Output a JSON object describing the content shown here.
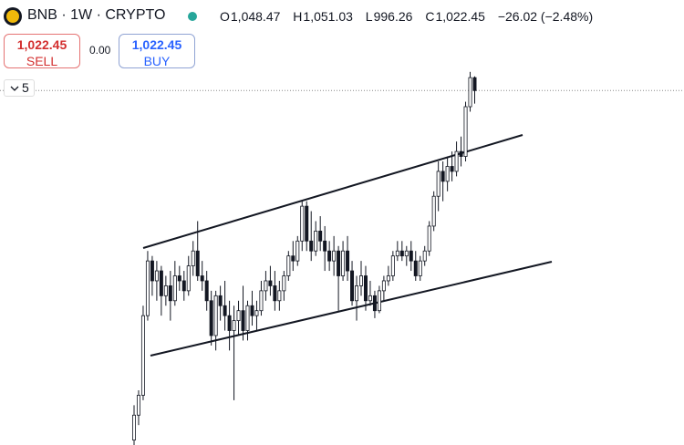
{
  "header": {
    "symbol": "BNB · 1W · CRYPTO",
    "o_label": "O",
    "open": "1,048.47",
    "h_label": "H",
    "high": "1,051.03",
    "l_label": "L",
    "low": "996.26",
    "c_label": "C",
    "close": "1,022.45",
    "change": "−26.02 (−2.48%)"
  },
  "trade": {
    "sell_price": "1,022.45",
    "sell": "SELL",
    "spread": "0.00",
    "buy_price": "1,022.45",
    "buy": "BUY",
    "interval_count": "5"
  },
  "chart_data": {
    "type": "candlestick",
    "ylim": [
      310,
      1100
    ],
    "color": "#131722",
    "candles": [
      [
        320,
        390,
        310,
        370
      ],
      [
        370,
        420,
        350,
        410
      ],
      [
        410,
        590,
        400,
        570
      ],
      [
        570,
        700,
        560,
        680
      ],
      [
        680,
        690,
        610,
        640
      ],
      [
        640,
        680,
        600,
        660
      ],
      [
        660,
        670,
        570,
        610
      ],
      [
        610,
        650,
        590,
        630
      ],
      [
        630,
        660,
        560,
        600
      ],
      [
        600,
        680,
        590,
        650
      ],
      [
        650,
        670,
        620,
        640
      ],
      [
        640,
        660,
        600,
        620
      ],
      [
        620,
        690,
        610,
        670
      ],
      [
        670,
        720,
        650,
        700
      ],
      [
        700,
        760,
        640,
        650
      ],
      [
        650,
        680,
        620,
        640
      ],
      [
        640,
        660,
        580,
        600
      ],
      [
        600,
        620,
        510,
        530
      ],
      [
        530,
        620,
        500,
        610
      ],
      [
        610,
        630,
        560,
        590
      ],
      [
        590,
        640,
        540,
        570
      ],
      [
        570,
        600,
        500,
        540
      ],
      [
        540,
        590,
        400,
        560
      ],
      [
        560,
        600,
        530,
        580
      ],
      [
        580,
        630,
        520,
        540
      ],
      [
        540,
        600,
        520,
        590
      ],
      [
        590,
        620,
        550,
        570
      ],
      [
        570,
        600,
        540,
        580
      ],
      [
        580,
        640,
        570,
        620
      ],
      [
        620,
        660,
        600,
        640
      ],
      [
        640,
        670,
        610,
        630
      ],
      [
        630,
        660,
        580,
        600
      ],
      [
        600,
        640,
        580,
        620
      ],
      [
        620,
        660,
        600,
        650
      ],
      [
        650,
        700,
        640,
        690
      ],
      [
        690,
        720,
        660,
        680
      ],
      [
        680,
        730,
        670,
        720
      ],
      [
        720,
        800,
        700,
        790
      ],
      [
        790,
        800,
        700,
        720
      ],
      [
        720,
        780,
        680,
        700
      ],
      [
        700,
        760,
        690,
        740
      ],
      [
        740,
        770,
        700,
        720
      ],
      [
        720,
        750,
        660,
        700
      ],
      [
        700,
        720,
        660,
        680
      ],
      [
        680,
        730,
        650,
        700
      ],
      [
        700,
        710,
        580,
        650
      ],
      [
        650,
        720,
        640,
        700
      ],
      [
        700,
        730,
        640,
        660
      ],
      [
        660,
        680,
        590,
        600
      ],
      [
        600,
        650,
        560,
        630
      ],
      [
        630,
        680,
        610,
        650
      ],
      [
        650,
        670,
        580,
        600
      ],
      [
        600,
        640,
        590,
        610
      ],
      [
        610,
        620,
        565,
        580
      ],
      [
        580,
        630,
        575,
        620
      ],
      [
        620,
        650,
        600,
        640
      ],
      [
        640,
        670,
        630,
        650
      ],
      [
        650,
        700,
        640,
        690
      ],
      [
        690,
        720,
        680,
        700
      ],
      [
        700,
        720,
        680,
        690
      ],
      [
        690,
        710,
        670,
        700
      ],
      [
        700,
        720,
        660,
        680
      ],
      [
        680,
        700,
        640,
        650
      ],
      [
        650,
        690,
        640,
        680
      ],
      [
        680,
        710,
        670,
        700
      ],
      [
        700,
        760,
        690,
        750
      ],
      [
        750,
        820,
        740,
        810
      ],
      [
        810,
        880,
        780,
        860
      ],
      [
        860,
        880,
        800,
        840
      ],
      [
        840,
        890,
        820,
        870
      ],
      [
        870,
        900,
        840,
        860
      ],
      [
        860,
        920,
        850,
        900
      ],
      [
        900,
        930,
        870,
        890
      ],
      [
        890,
        1000,
        880,
        990
      ],
      [
        990,
        1060,
        980,
        1048.47
      ],
      [
        1048.47,
        1051.03,
        996.26,
        1022.45
      ]
    ]
  }
}
